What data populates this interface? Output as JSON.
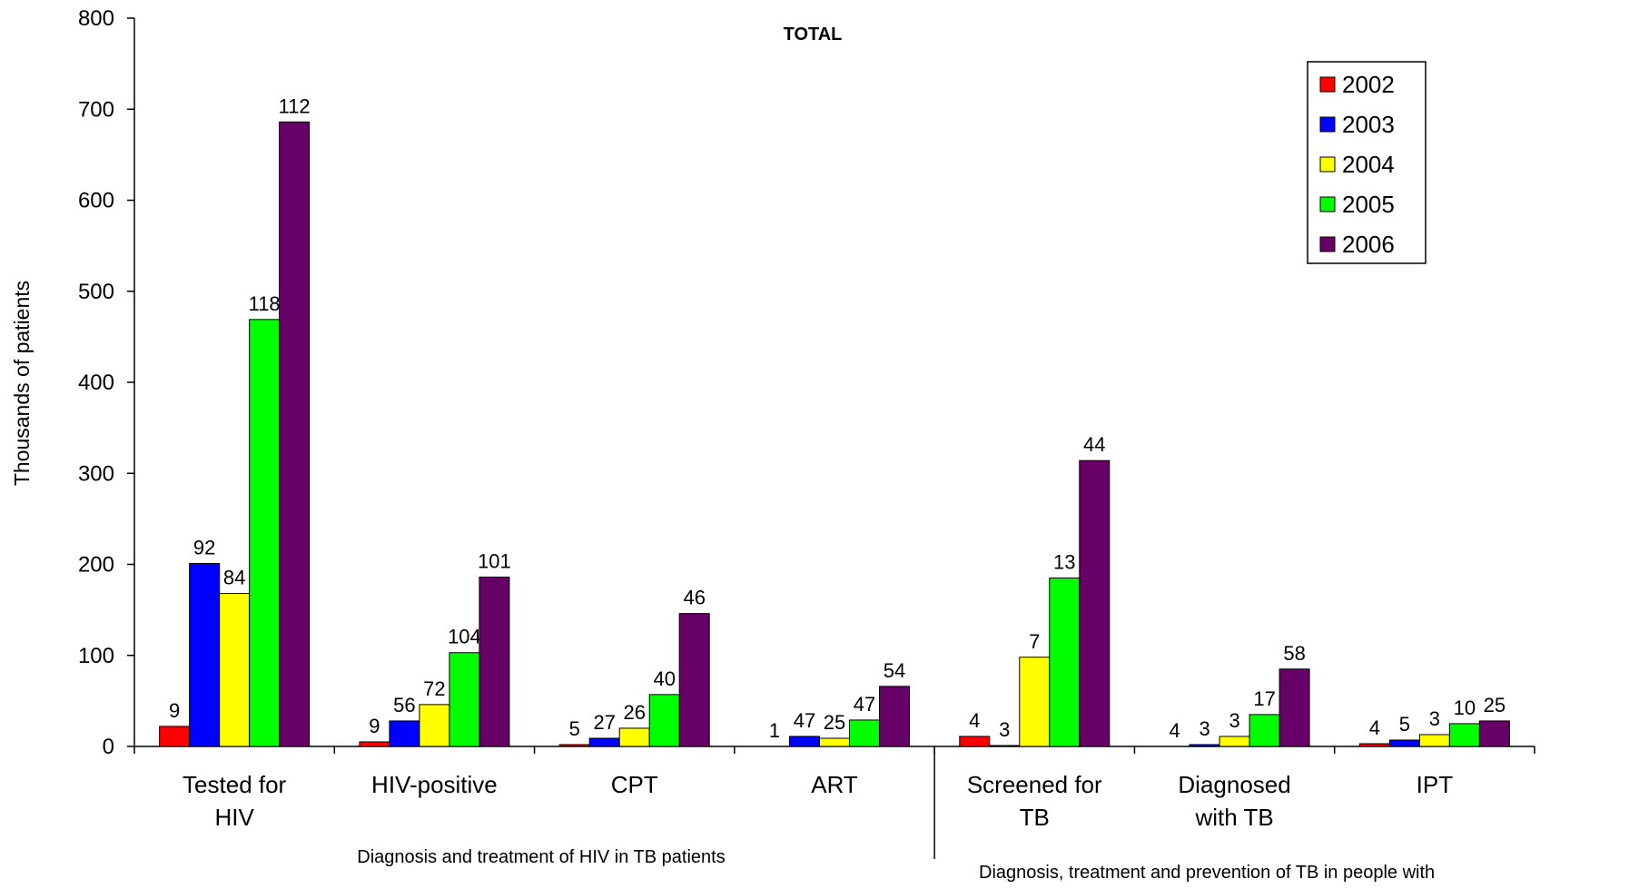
{
  "chart_data": {
    "type": "bar",
    "title": "TOTAL",
    "ylabel": "Thousands of patients",
    "ylim": [
      0,
      800
    ],
    "yticks": [
      0,
      100,
      200,
      300,
      400,
      500,
      600,
      700,
      800
    ],
    "grid": false,
    "legend_position": "top-right",
    "categories": [
      "Tested for HIV",
      "HIV-positive",
      "CPT",
      "ART",
      "Screened for TB",
      "Diagnosed with TB",
      "IPT"
    ],
    "category_label_lines": [
      [
        "Tested for",
        "HIV"
      ],
      [
        "HIV-positive"
      ],
      [
        "CPT"
      ],
      [
        "ART"
      ],
      [
        "Screened for",
        "TB"
      ],
      [
        "Diagnosed",
        "with TB"
      ],
      [
        "IPT"
      ]
    ],
    "group_labels": [
      "Diagnosis and treatment of HIV in TB patients",
      "Diagnosis, treatment and prevention of TB in people with"
    ],
    "series": [
      {
        "name": "2002",
        "color": "#ff0000",
        "values": [
          22,
          5,
          2,
          0,
          11,
          0,
          3
        ],
        "labels": [
          "9",
          "9",
          "5",
          "1",
          "4",
          "4",
          "4"
        ]
      },
      {
        "name": "2003",
        "color": "#0000ff",
        "values": [
          201,
          28,
          9,
          11,
          1,
          2,
          7
        ],
        "labels": [
          "92",
          "56",
          "27",
          "47",
          "3",
          "3",
          "5"
        ]
      },
      {
        "name": "2004",
        "color": "#ffff00",
        "values": [
          168,
          46,
          20,
          9,
          98,
          11,
          13
        ],
        "labels": [
          "84",
          "72",
          "26",
          "25",
          "7",
          "3",
          "3"
        ]
      },
      {
        "name": "2005",
        "color": "#00ff00",
        "values": [
          469,
          103,
          57,
          29,
          185,
          35,
          25
        ],
        "labels": [
          "118",
          "104",
          "40",
          "47",
          "13",
          "17",
          "10"
        ]
      },
      {
        "name": "2006",
        "color": "#660066",
        "values": [
          686,
          186,
          146,
          66,
          314,
          85,
          28
        ],
        "labels": [
          "112",
          "101",
          "46",
          "54",
          "44",
          "58",
          "25"
        ]
      }
    ]
  }
}
